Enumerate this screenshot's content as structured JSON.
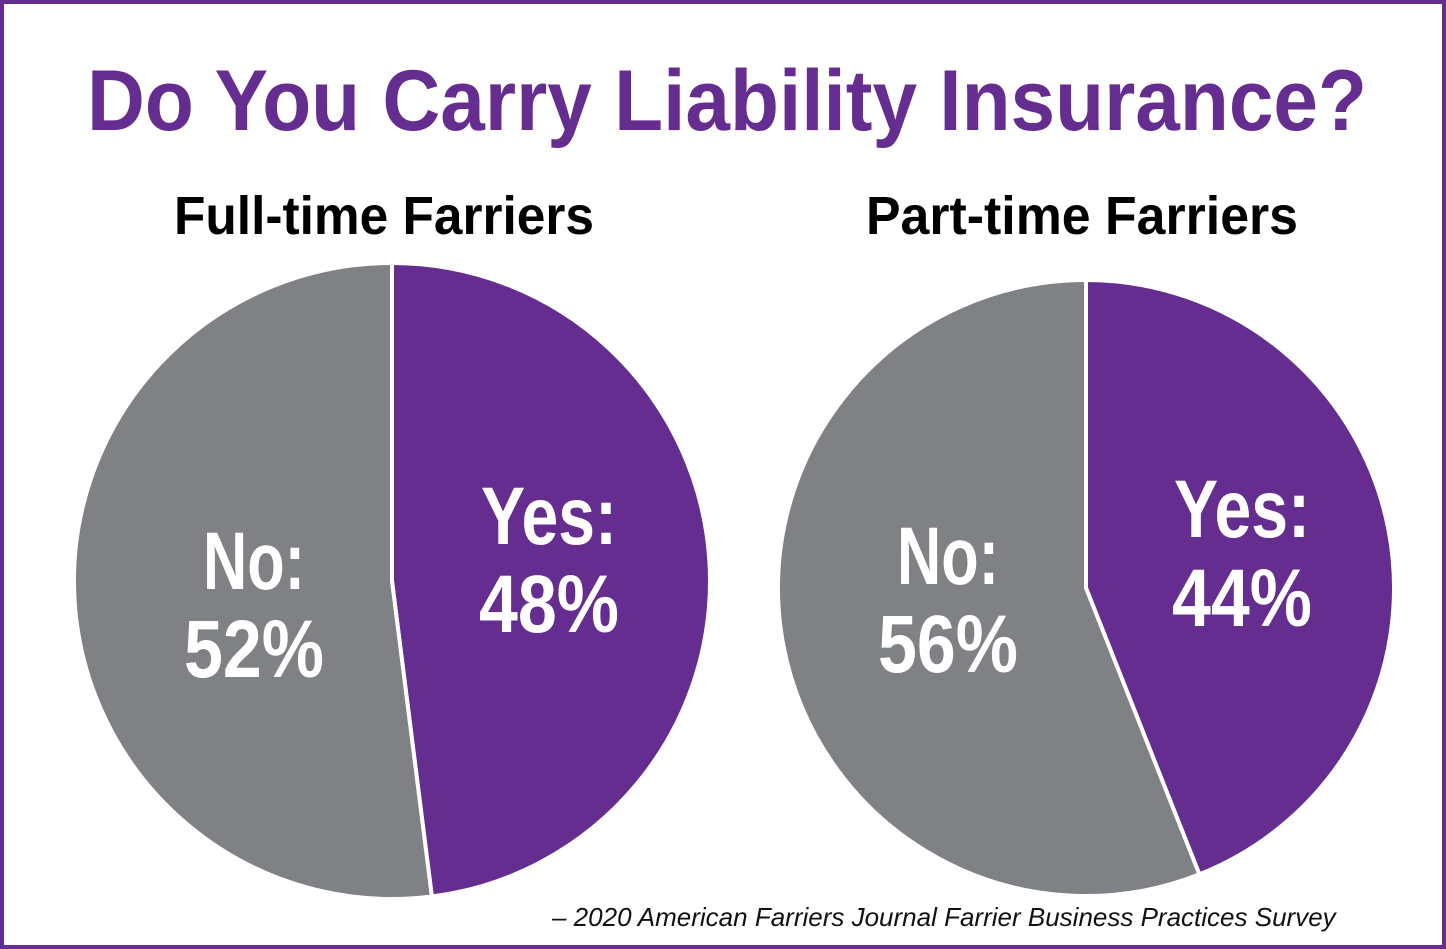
{
  "chart_data": [
    {
      "type": "pie",
      "title": "Do You Carry Liability Insurance?",
      "subtitle": "Full-time Farriers",
      "slices": [
        {
          "label": "Yes:",
          "value": 48,
          "value_label": "48%",
          "color": "#652d8f"
        },
        {
          "label": "No:",
          "value": 52,
          "value_label": "52%",
          "color": "#808184"
        }
      ]
    },
    {
      "type": "pie",
      "title": "Do You Carry Liability Insurance?",
      "subtitle": "Part-time Farriers",
      "slices": [
        {
          "label": "Yes:",
          "value": 44,
          "value_label": "44%",
          "color": "#652d8f"
        },
        {
          "label": "No:",
          "value": 56,
          "value_label": "56%",
          "color": "#808184"
        }
      ]
    }
  ],
  "source": "– 2020 American Farriers Journal Farrier Business Practices Survey",
  "colors": {
    "accent": "#652d8f",
    "gray": "#808184"
  }
}
